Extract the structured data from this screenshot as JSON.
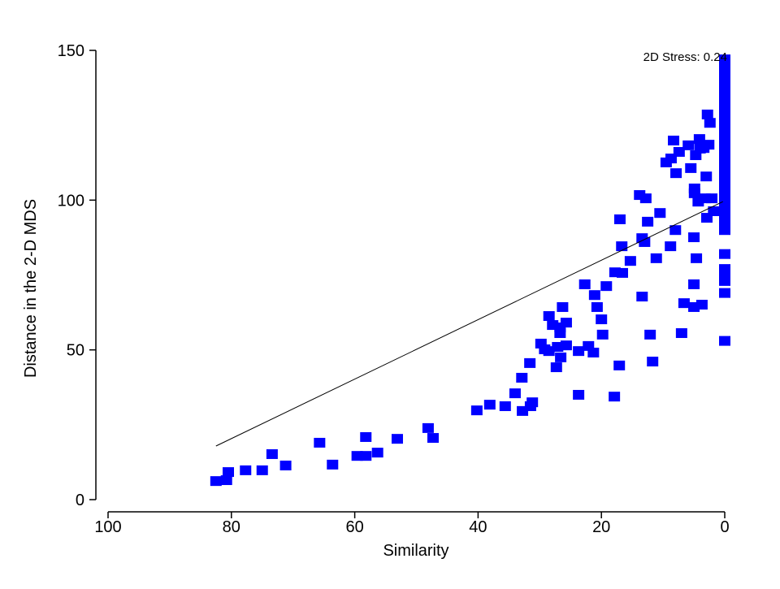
{
  "chart_data": {
    "type": "scatter",
    "title": "",
    "xlabel": "Similarity",
    "ylabel": "Distance in the 2-D MDS",
    "xlim": [
      100,
      0
    ],
    "ylim": [
      0,
      150
    ],
    "x_reversed": true,
    "xticks": [
      "100",
      "80",
      "60",
      "40",
      "20",
      "0"
    ],
    "xtick_values": [
      100,
      80,
      60,
      40,
      20,
      0
    ],
    "yticks": [
      "0",
      "50",
      "100",
      "150"
    ],
    "ytick_values": [
      0,
      50,
      100,
      150
    ],
    "grid": false,
    "annotation": "2D Stress: 0.24",
    "marker_color": "#0000ff",
    "fit_line": {
      "x": [
        82.5,
        0.3
      ],
      "y": [
        17.9,
        99.5
      ],
      "color": "#000000"
    },
    "points": [
      [
        82.5,
        6.2
      ],
      [
        80.8,
        6.5
      ],
      [
        80.5,
        9.2
      ],
      [
        77.7,
        9.8
      ],
      [
        75.0,
        9.8
      ],
      [
        73.4,
        15.2
      ],
      [
        71.2,
        11.4
      ],
      [
        65.7,
        19.0
      ],
      [
        63.6,
        11.7
      ],
      [
        59.6,
        14.6
      ],
      [
        58.2,
        14.6
      ],
      [
        58.2,
        20.9
      ],
      [
        56.3,
        15.7
      ],
      [
        53.1,
        20.3
      ],
      [
        48.1,
        23.9
      ],
      [
        47.3,
        20.6
      ],
      [
        40.2,
        29.8
      ],
      [
        38.1,
        31.7
      ],
      [
        35.6,
        31.2
      ],
      [
        34.0,
        35.5
      ],
      [
        32.8,
        29.6
      ],
      [
        31.5,
        31.2
      ],
      [
        31.2,
        32.5
      ],
      [
        32.9,
        40.7
      ],
      [
        31.6,
        45.6
      ],
      [
        29.8,
        52.1
      ],
      [
        29.2,
        50.2
      ],
      [
        28.5,
        61.3
      ],
      [
        27.9,
        58.3
      ],
      [
        28.5,
        49.6
      ],
      [
        27.1,
        51.0
      ],
      [
        26.7,
        55.6
      ],
      [
        26.7,
        57.5
      ],
      [
        26.6,
        47.5
      ],
      [
        26.3,
        64.3
      ],
      [
        25.7,
        59.1
      ],
      [
        25.7,
        51.5
      ],
      [
        27.3,
        44.2
      ],
      [
        23.7,
        35.0
      ],
      [
        23.7,
        49.6
      ],
      [
        22.7,
        71.9
      ],
      [
        22.1,
        51.3
      ],
      [
        21.3,
        49.1
      ],
      [
        21.1,
        68.3
      ],
      [
        20.7,
        64.3
      ],
      [
        20.0,
        60.2
      ],
      [
        19.8,
        55.1
      ],
      [
        19.2,
        71.3
      ],
      [
        17.9,
        34.4
      ],
      [
        17.8,
        75.9
      ],
      [
        17.0,
        93.6
      ],
      [
        17.1,
        44.8
      ],
      [
        16.7,
        84.6
      ],
      [
        16.6,
        75.7
      ],
      [
        15.3,
        79.7
      ],
      [
        13.8,
        101.7
      ],
      [
        13.4,
        87.3
      ],
      [
        13.4,
        67.8
      ],
      [
        12.8,
        100.6
      ],
      [
        13.0,
        86.0
      ],
      [
        12.5,
        92.8
      ],
      [
        12.1,
        55.1
      ],
      [
        11.7,
        46.1
      ],
      [
        11.1,
        80.6
      ],
      [
        10.5,
        95.7
      ],
      [
        9.5,
        112.6
      ],
      [
        8.8,
        84.6
      ],
      [
        8.7,
        113.9
      ],
      [
        8.3,
        119.9
      ],
      [
        8.0,
        90.0
      ],
      [
        7.9,
        109.0
      ],
      [
        7.4,
        116.1
      ],
      [
        7.0,
        55.6
      ],
      [
        6.6,
        65.6
      ],
      [
        5.9,
        118.3
      ],
      [
        5.5,
        110.7
      ],
      [
        5.0,
        64.3
      ],
      [
        5.0,
        87.6
      ],
      [
        5.0,
        71.9
      ],
      [
        4.9,
        103.9
      ],
      [
        4.9,
        102.3
      ],
      [
        4.7,
        115.0
      ],
      [
        4.6,
        80.6
      ],
      [
        4.3,
        99.5
      ],
      [
        4.1,
        120.4
      ],
      [
        4.0,
        117.2
      ],
      [
        3.4,
        117.4
      ],
      [
        3.7,
        65.1
      ],
      [
        3.2,
        100.6
      ],
      [
        2.9,
        94.1
      ],
      [
        3.0,
        107.9
      ],
      [
        2.8,
        128.6
      ],
      [
        2.6,
        118.5
      ],
      [
        2.4,
        125.8
      ],
      [
        2.1,
        100.6
      ],
      [
        1.8,
        96.3
      ],
      [
        0,
        53
      ],
      [
        0,
        69
      ],
      [
        0,
        73
      ],
      [
        0,
        75
      ],
      [
        0,
        77
      ],
      [
        0,
        82
      ],
      [
        0,
        90
      ],
      [
        0,
        92
      ],
      [
        0,
        94
      ],
      [
        0,
        95.5
      ],
      [
        0,
        97
      ],
      [
        0,
        98.5
      ],
      [
        0,
        100
      ],
      [
        0,
        101.5
      ],
      [
        0,
        103
      ],
      [
        0,
        104.5
      ],
      [
        0,
        106
      ],
      [
        0,
        107.5
      ],
      [
        0,
        109
      ],
      [
        0,
        110.5
      ],
      [
        0,
        112
      ],
      [
        0,
        113.5
      ],
      [
        0,
        115
      ],
      [
        0,
        116.5
      ],
      [
        0,
        118
      ],
      [
        0,
        119.5
      ],
      [
        0,
        121
      ],
      [
        0,
        122.5
      ],
      [
        0,
        124
      ],
      [
        0,
        125.5
      ],
      [
        0,
        127
      ],
      [
        0,
        128.5
      ],
      [
        0,
        130
      ],
      [
        0,
        131.5
      ],
      [
        0,
        133
      ],
      [
        0,
        134.5
      ],
      [
        0,
        136
      ],
      [
        0,
        137.5
      ],
      [
        0,
        139
      ],
      [
        0,
        140.5
      ],
      [
        0,
        142
      ],
      [
        0,
        143.5
      ],
      [
        0,
        145
      ],
      [
        0,
        147
      ]
    ]
  }
}
